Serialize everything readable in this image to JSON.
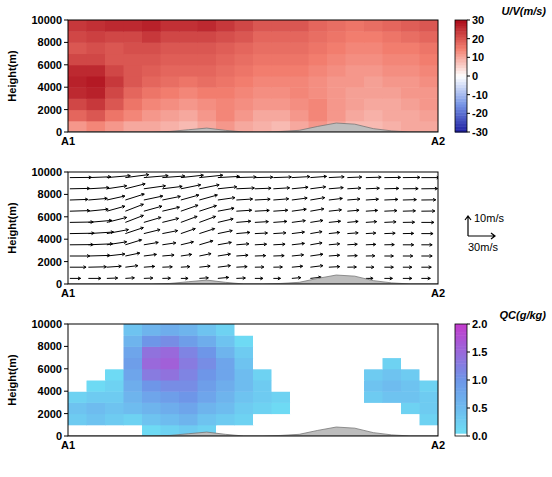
{
  "chart_data": [
    {
      "type": "heatmap",
      "y_label": "Height(m)",
      "x_labels": [
        "A1",
        "A2"
      ],
      "ylim": [
        0,
        10000
      ],
      "yticks": [
        0,
        2000,
        4000,
        6000,
        8000,
        10000
      ],
      "cells": [
        [
          12,
          14,
          12,
          10,
          10,
          9,
          8,
          10,
          12,
          10,
          9,
          8,
          10,
          12,
          10,
          8,
          8,
          9,
          10,
          10
        ],
        [
          18,
          20,
          16,
          14,
          12,
          11,
          10,
          12,
          14,
          12,
          10,
          10,
          12,
          14,
          12,
          10,
          9,
          10,
          10,
          11
        ],
        [
          22,
          24,
          20,
          16,
          14,
          13,
          12,
          13,
          14,
          13,
          12,
          12,
          13,
          14,
          12,
          11,
          10,
          10,
          11,
          12
        ],
        [
          26,
          27,
          22,
          18,
          16,
          15,
          14,
          15,
          15,
          14,
          13,
          13,
          14,
          13,
          12,
          11,
          11,
          11,
          12,
          12
        ],
        [
          27,
          28,
          24,
          20,
          18,
          17,
          16,
          17,
          16,
          15,
          14,
          14,
          14,
          13,
          12,
          12,
          11,
          12,
          12,
          13
        ],
        [
          26,
          26,
          22,
          20,
          19,
          18,
          18,
          18,
          17,
          16,
          15,
          15,
          15,
          14,
          13,
          12,
          12,
          13,
          13,
          14
        ],
        [
          22,
          22,
          20,
          20,
          20,
          19,
          19,
          19,
          18,
          17,
          16,
          16,
          16,
          15,
          14,
          13,
          13,
          14,
          14,
          15
        ],
        [
          20,
          21,
          20,
          21,
          21,
          20,
          20,
          20,
          19,
          18,
          17,
          17,
          17,
          16,
          15,
          14,
          14,
          15,
          15,
          16
        ],
        [
          22,
          23,
          22,
          22,
          24,
          22,
          22,
          22,
          21,
          20,
          18,
          18,
          18,
          17,
          16,
          15,
          15,
          16,
          17,
          18
        ],
        [
          24,
          25,
          26,
          26,
          27,
          25,
          25,
          26,
          24,
          22,
          20,
          20,
          20,
          18,
          17,
          16,
          17,
          18,
          19,
          20
        ]
      ],
      "terrain": [
        0,
        0,
        0,
        0,
        0,
        50,
        200,
        350,
        150,
        0,
        0,
        50,
        150,
        500,
        800,
        700,
        300,
        100,
        0,
        0
      ],
      "colorbar": {
        "label": "U/V(m/s)",
        "range": [
          -30,
          30
        ],
        "ticks": [
          30,
          20,
          10,
          0,
          -10,
          -20,
          -30
        ]
      }
    },
    {
      "type": "vector",
      "y_label": "Height(m)",
      "x_labels": [
        "A1",
        "A2"
      ],
      "ylim": [
        0,
        10000
      ],
      "yticks": [
        0,
        2000,
        4000,
        6000,
        8000,
        10000
      ],
      "u": [
        [
          12,
          14,
          12,
          10,
          10,
          9,
          8,
          10,
          12,
          10,
          9,
          8,
          10,
          12,
          10,
          8,
          8,
          9,
          10,
          10
        ],
        [
          18,
          20,
          16,
          14,
          12,
          11,
          10,
          12,
          14,
          12,
          10,
          10,
          12,
          14,
          12,
          10,
          9,
          10,
          10,
          11
        ],
        [
          22,
          24,
          20,
          16,
          14,
          13,
          12,
          13,
          14,
          13,
          12,
          12,
          13,
          14,
          12,
          11,
          10,
          10,
          11,
          12
        ],
        [
          26,
          27,
          22,
          18,
          16,
          15,
          14,
          15,
          15,
          14,
          13,
          13,
          14,
          13,
          12,
          11,
          11,
          11,
          12,
          12
        ],
        [
          27,
          28,
          24,
          20,
          18,
          17,
          16,
          17,
          16,
          15,
          14,
          14,
          14,
          13,
          12,
          12,
          11,
          12,
          12,
          13
        ],
        [
          26,
          26,
          22,
          20,
          19,
          18,
          18,
          18,
          17,
          16,
          15,
          15,
          15,
          14,
          13,
          12,
          12,
          13,
          13,
          14
        ],
        [
          22,
          22,
          20,
          20,
          20,
          19,
          19,
          19,
          18,
          17,
          16,
          16,
          16,
          15,
          14,
          13,
          13,
          14,
          14,
          15
        ],
        [
          20,
          21,
          20,
          21,
          21,
          20,
          20,
          20,
          19,
          18,
          17,
          17,
          17,
          16,
          15,
          14,
          14,
          15,
          15,
          16
        ],
        [
          22,
          23,
          22,
          22,
          24,
          22,
          22,
          22,
          21,
          20,
          18,
          18,
          18,
          17,
          16,
          15,
          15,
          16,
          17,
          18
        ],
        [
          24,
          25,
          26,
          26,
          27,
          25,
          25,
          26,
          24,
          22,
          20,
          20,
          20,
          18,
          17,
          16,
          17,
          18,
          19,
          20
        ]
      ],
      "w": [
        [
          0,
          0,
          0.2,
          0.3,
          0.2,
          0.1,
          0,
          0.3,
          0.5,
          0.2,
          0,
          0,
          0.4,
          0.6,
          0.2,
          0,
          0,
          0,
          0,
          0
        ],
        [
          0,
          0.2,
          0.5,
          0.8,
          0.4,
          0.2,
          0.3,
          0.6,
          0.8,
          0.3,
          0.1,
          0.1,
          0.5,
          0.8,
          0.3,
          0.1,
          0,
          0,
          0,
          0
        ],
        [
          0,
          0.3,
          1,
          1.5,
          0.8,
          0.5,
          0.8,
          1.2,
          1,
          0.4,
          0.2,
          0.2,
          0.6,
          0.9,
          0.4,
          0.2,
          0.1,
          0,
          0,
          0
        ],
        [
          0.1,
          0.5,
          1.5,
          2.5,
          1.2,
          1,
          1.5,
          2,
          1.2,
          0.5,
          0.3,
          0.3,
          0.7,
          1,
          0.5,
          0.3,
          0.2,
          0.1,
          0,
          0
        ],
        [
          0.2,
          0.8,
          2,
          3,
          2,
          1.5,
          2.5,
          2.5,
          1.5,
          0.6,
          0.3,
          0.4,
          0.8,
          1,
          0.6,
          0.4,
          0.3,
          0.2,
          0.1,
          0
        ],
        [
          0.2,
          1,
          2.5,
          3.5,
          2.5,
          2,
          3,
          3,
          1.8,
          0.6,
          0.4,
          0.5,
          0.9,
          1,
          0.6,
          0.5,
          0.4,
          0.3,
          0.1,
          0
        ],
        [
          0.3,
          1,
          2.5,
          3.5,
          2.5,
          2,
          3,
          2.8,
          1.5,
          0.5,
          0.4,
          0.5,
          1,
          1.2,
          0.7,
          0.5,
          0.4,
          0.3,
          0.2,
          0.1
        ],
        [
          0.3,
          0.8,
          2,
          3,
          2,
          1.8,
          2.5,
          2.5,
          1.2,
          0.5,
          0.4,
          0.6,
          1,
          1.2,
          0.8,
          0.5,
          0.4,
          0.3,
          0.2,
          0.1
        ],
        [
          0.2,
          0.6,
          1.5,
          2.5,
          1.5,
          1.2,
          2,
          2,
          1,
          0.4,
          0.3,
          0.5,
          0.8,
          1,
          0.6,
          0.4,
          0.3,
          0.2,
          0.1,
          0.1
        ],
        [
          0.1,
          0.4,
          1,
          1.5,
          1,
          0.8,
          1.2,
          1.2,
          0.6,
          0.3,
          0.2,
          0.3,
          0.5,
          0.6,
          0.4,
          0.3,
          0.2,
          0.1,
          0.1,
          0
        ]
      ],
      "terrain": [
        0,
        0,
        0,
        0,
        0,
        50,
        200,
        350,
        150,
        0,
        0,
        50,
        150,
        500,
        800,
        700,
        300,
        100,
        0,
        0
      ],
      "reference_w": {
        "value": 10,
        "label": "10m/s"
      },
      "reference_u": {
        "value": 30,
        "label": "30m/s"
      }
    },
    {
      "type": "heatmap",
      "y_label": "Height(m)",
      "x_labels": [
        "A1",
        "A2"
      ],
      "ylim": [
        0,
        10000
      ],
      "yticks": [
        0,
        2000,
        4000,
        6000,
        8000,
        10000
      ],
      "cells": [
        [
          0,
          0,
          0,
          0,
          0.1,
          0.2,
          0.3,
          0.2,
          0,
          0,
          0,
          0,
          0,
          0,
          0,
          0,
          0,
          0,
          0,
          0
        ],
        [
          0.3,
          0.4,
          0.3,
          0.2,
          0.4,
          0.5,
          0.6,
          0.4,
          0.3,
          0.2,
          0,
          0,
          0,
          0,
          0,
          0,
          0,
          0,
          0,
          0.2
        ],
        [
          0.4,
          0.5,
          0.4,
          0.5,
          0.6,
          0.7,
          0.8,
          0.6,
          0.5,
          0.3,
          0.2,
          0.1,
          0,
          0,
          0,
          0,
          0,
          0,
          0.2,
          0.3
        ],
        [
          0.2,
          0.3,
          0.3,
          0.6,
          0.8,
          0.9,
          1.0,
          0.8,
          0.6,
          0.4,
          0.3,
          0.2,
          0,
          0,
          0,
          0,
          0.3,
          0.4,
          0.4,
          0.3
        ],
        [
          0,
          0.1,
          0.2,
          0.7,
          1.0,
          1.1,
          1.1,
          0.9,
          0.7,
          0.5,
          0.3,
          0,
          0,
          0,
          0,
          0,
          0.4,
          0.5,
          0.4,
          0.2
        ],
        [
          0,
          0,
          0.1,
          0.8,
          1.3,
          1.4,
          1.2,
          1.0,
          0.8,
          0.5,
          0.2,
          0,
          0,
          0,
          0,
          0,
          0.3,
          0.4,
          0.3,
          0
        ],
        [
          0,
          0,
          0,
          0.9,
          1.5,
          1.6,
          1.3,
          1.1,
          0.8,
          0.4,
          0,
          0,
          0,
          0,
          0,
          0,
          0,
          0.2,
          0,
          0
        ],
        [
          0,
          0,
          0,
          0.8,
          1.4,
          1.5,
          1.2,
          1.0,
          0.6,
          0.3,
          0,
          0,
          0,
          0,
          0,
          0,
          0,
          0,
          0,
          0
        ],
        [
          0,
          0,
          0,
          0.6,
          1.0,
          1.1,
          0.9,
          0.7,
          0.4,
          0.1,
          0,
          0,
          0,
          0,
          0,
          0,
          0,
          0,
          0,
          0
        ],
        [
          0,
          0,
          0,
          0.4,
          0.6,
          0.7,
          0.6,
          0.4,
          0.2,
          0,
          0,
          0,
          0,
          0,
          0,
          0,
          0,
          0,
          0,
          0
        ]
      ],
      "terrain": [
        0,
        0,
        0,
        0,
        0,
        50,
        200,
        350,
        150,
        0,
        0,
        50,
        150,
        500,
        800,
        700,
        300,
        100,
        0,
        0
      ],
      "colorbar": {
        "label": "QC(g/kg)",
        "range": [
          0,
          2
        ],
        "ticks": [
          {
            "value": 2,
            "label": "2.0"
          },
          {
            "value": 1.5,
            "label": "1.5"
          },
          {
            "value": 1,
            "label": "1.0"
          },
          {
            "value": 0.5,
            "label": "0.5"
          },
          {
            "value": 0,
            "label": "0.0"
          }
        ]
      }
    }
  ]
}
